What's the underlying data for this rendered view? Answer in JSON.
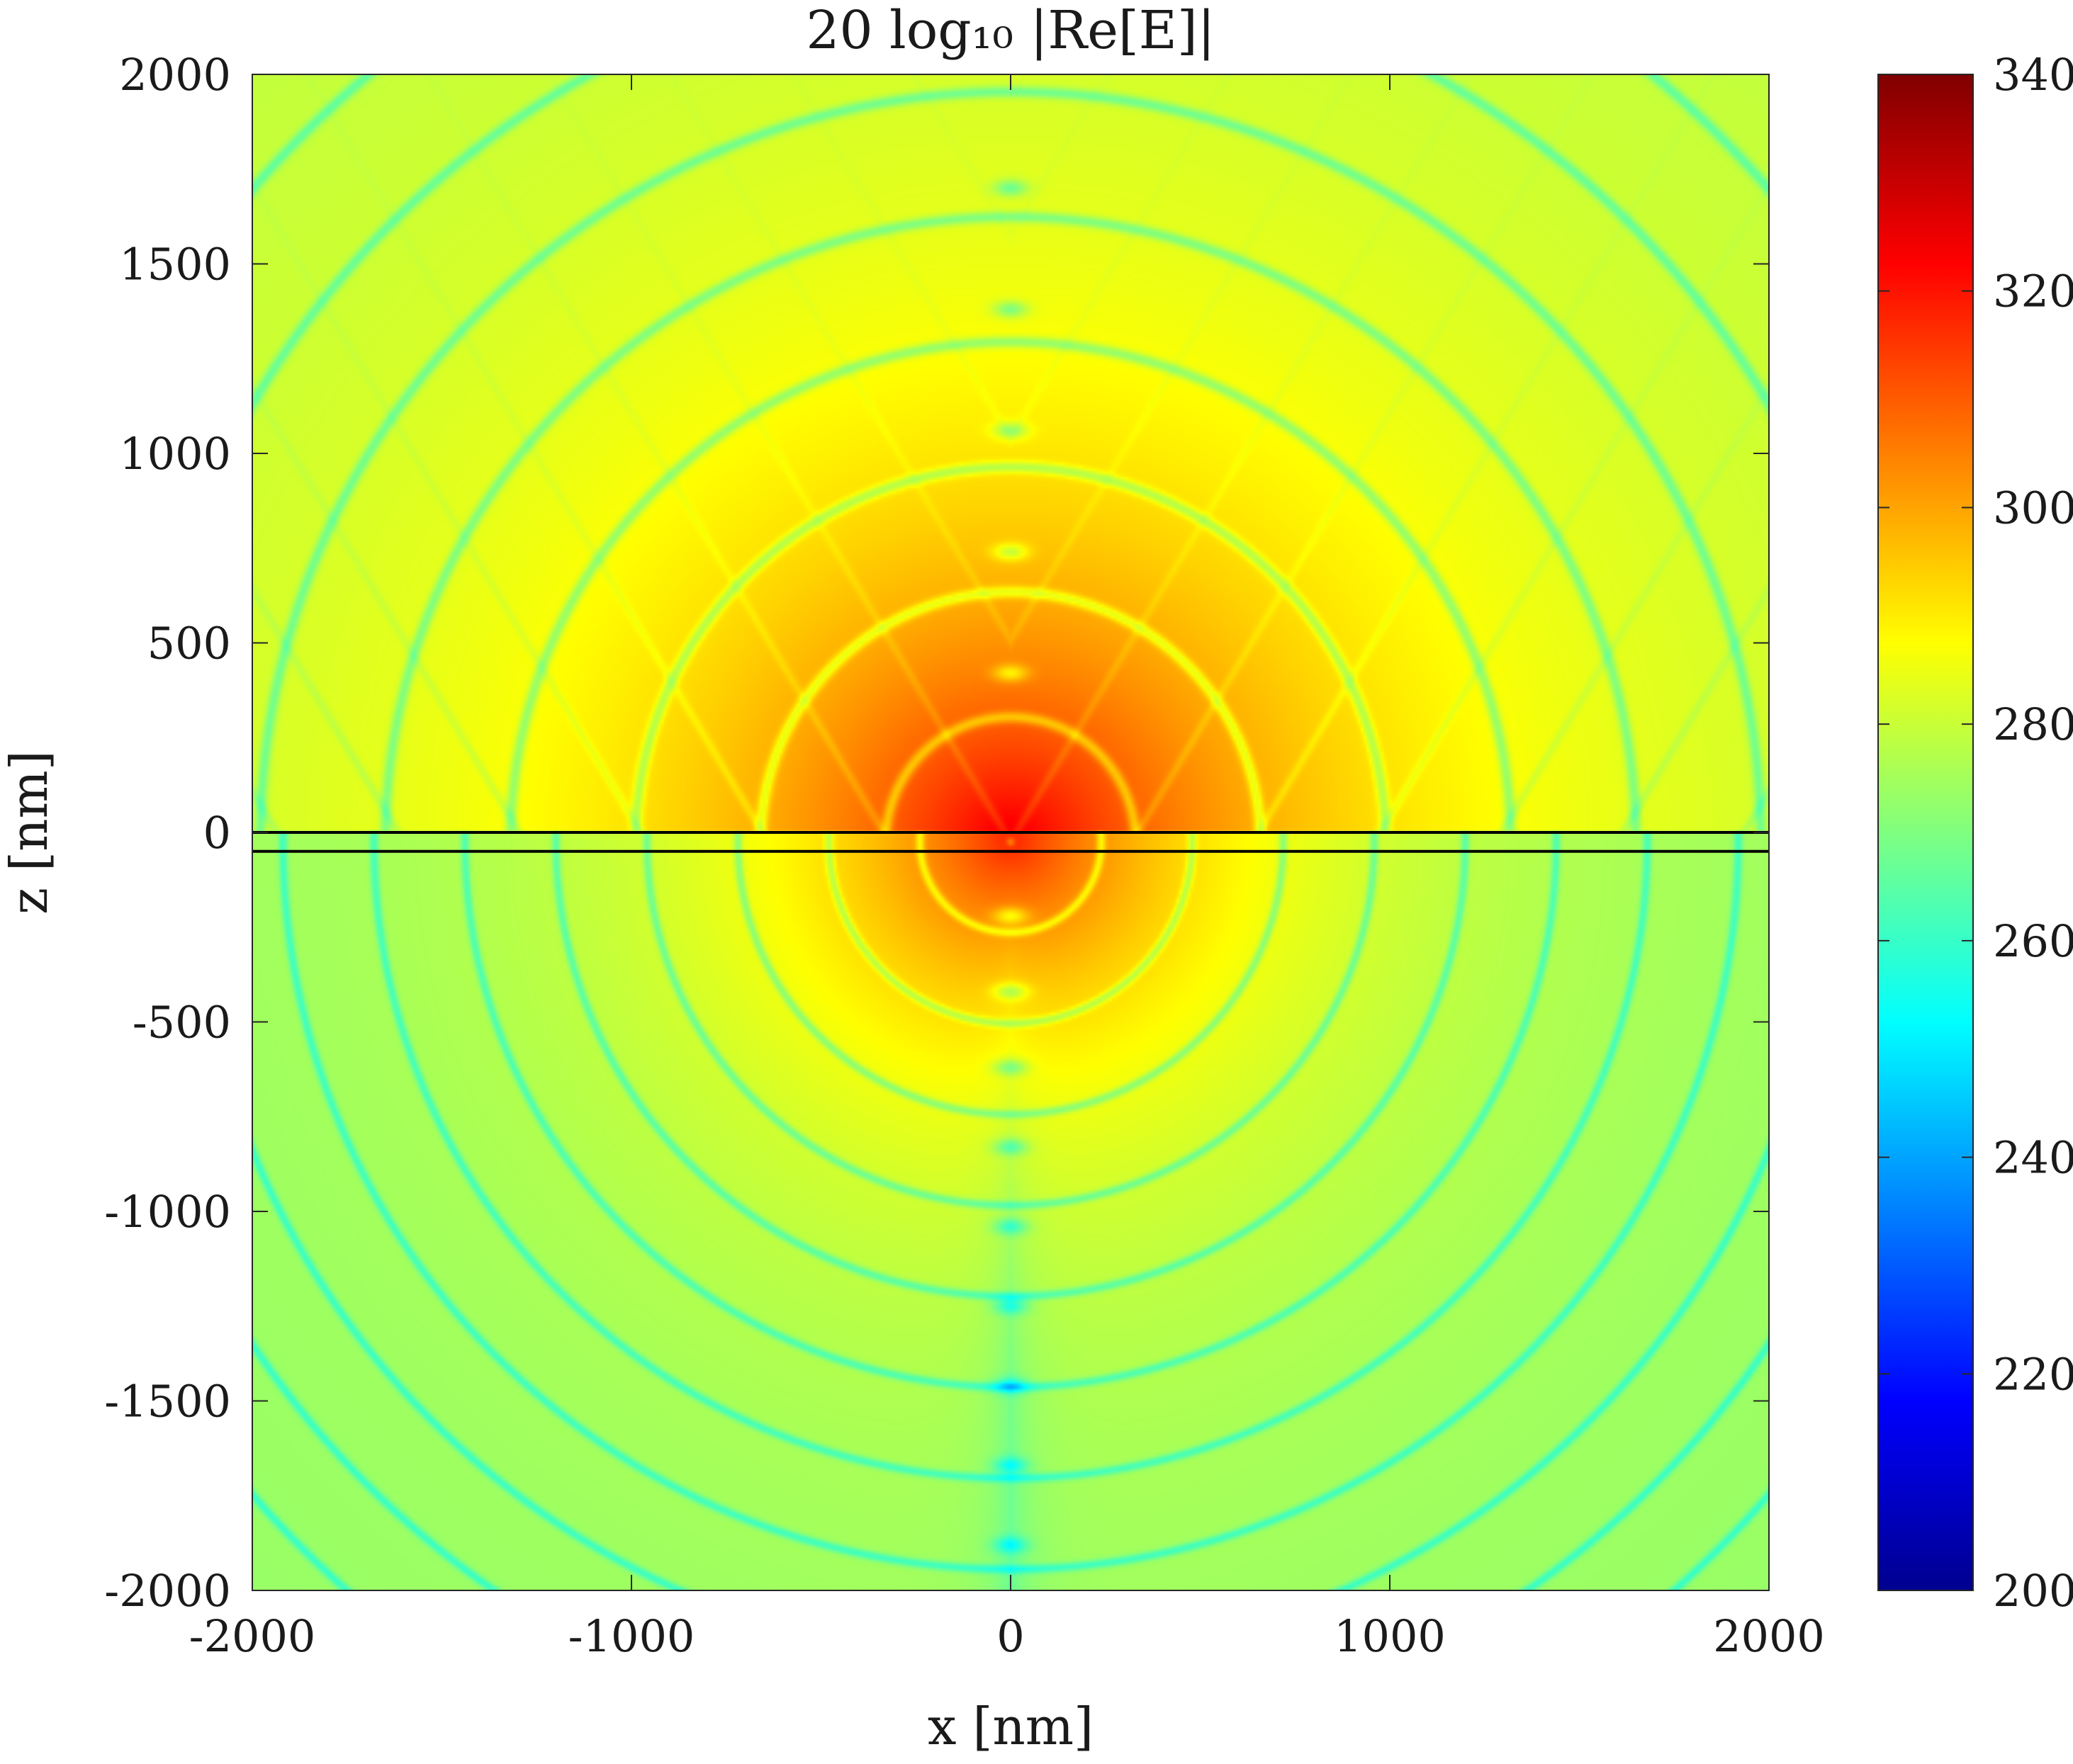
{
  "chart_data": {
    "type": "heatmap",
    "title": "20 log₁₀ |Re[E]|",
    "xlabel": "x [nm]",
    "ylabel": "z [nm]",
    "xlim": [
      -2000,
      2000
    ],
    "ylim": [
      -2000,
      2000
    ],
    "x_ticks": [
      -2000,
      -1000,
      0,
      1000,
      2000
    ],
    "y_ticks": [
      2000,
      1500,
      1000,
      500,
      0,
      -500,
      -1000,
      -1500,
      -2000
    ],
    "x_tick_labels": [
      "-2000",
      "-1000",
      "0",
      "1000",
      "2000"
    ],
    "y_tick_labels": [
      "2000",
      "1500",
      "1000",
      "500",
      "0",
      "-500",
      "-1000",
      "-1500",
      "-2000"
    ],
    "colorbar": {
      "colormap": "jet",
      "clim": [
        200,
        340
      ],
      "ticks": [
        200,
        220,
        240,
        260,
        280,
        300,
        320,
        340
      ],
      "tick_labels": [
        "200",
        "220",
        "240",
        "260",
        "280",
        "300",
        "320",
        "340"
      ]
    },
    "interface_lines_z": [
      0,
      -50
    ],
    "interface_line_color": "#000000",
    "source_position": [
      0,
      -25
    ],
    "peak_value": 318,
    "background_value": 276,
    "minima_along_x0_z": [
      1700,
      1380,
      1060,
      740,
      420,
      -220,
      -420,
      -620,
      -830,
      -1040,
      -1250,
      -1460,
      -1670,
      -1880
    ],
    "grid": false
  }
}
